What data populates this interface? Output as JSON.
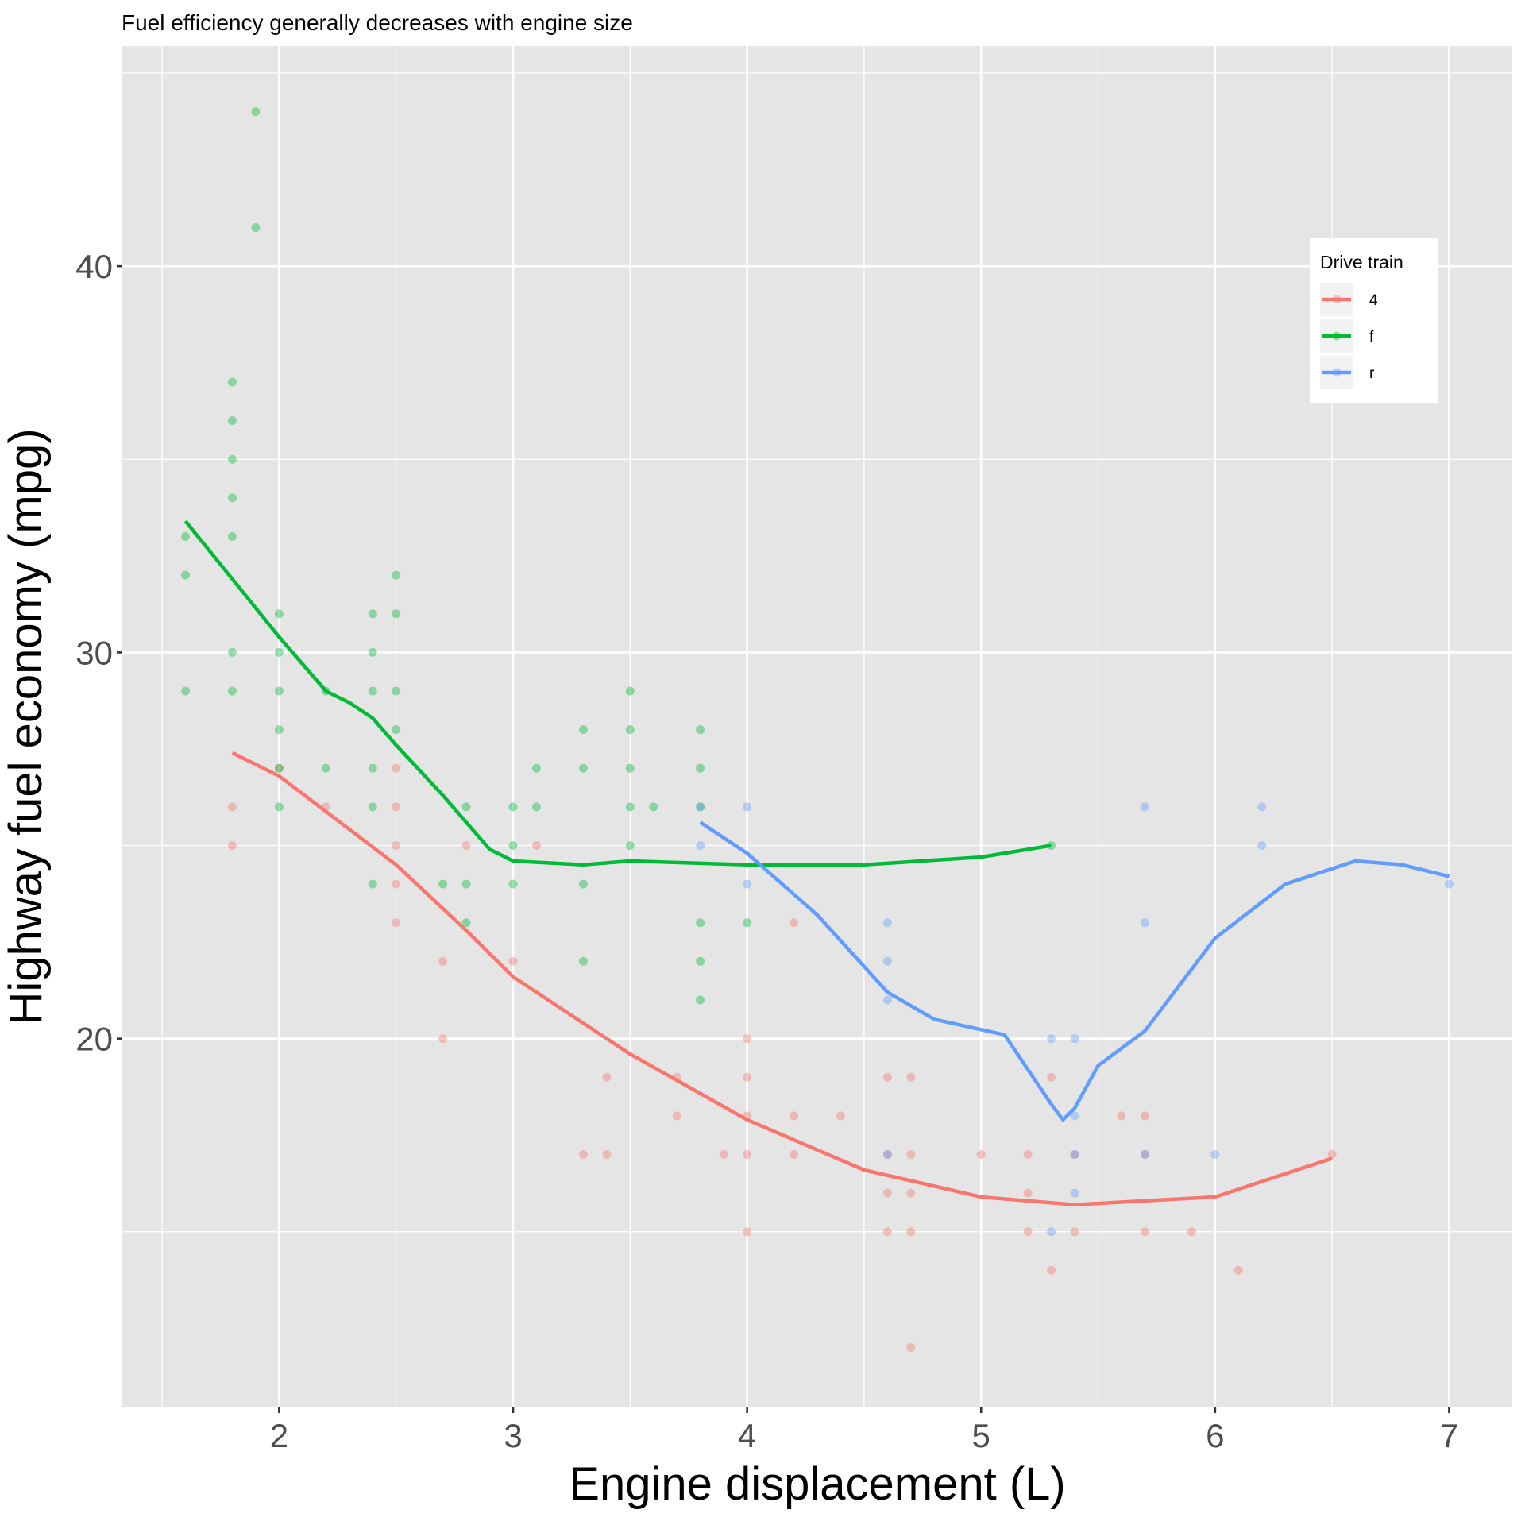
{
  "chart_data": {
    "type": "scatter",
    "title": "Fuel efficiency generally decreases with engine size",
    "x_label": "Engine displacement (L)",
    "y_label": "Highway fuel economy (mpg)",
    "xlim": [
      1.33,
      7.27
    ],
    "ylim": [
      10.45,
      45.7
    ],
    "xticks": [
      2,
      3,
      4,
      5,
      6,
      7
    ],
    "yticks": [
      20,
      30,
      40
    ],
    "x_minor_ticks": [
      1.5,
      2.5,
      3.5,
      4.5,
      5.5,
      6.5
    ],
    "y_minor_ticks": [
      15,
      25,
      35,
      45
    ],
    "grid": true,
    "legend": {
      "title": "Drive train",
      "position": "right"
    },
    "series": [
      {
        "name": "4",
        "color": "#F8766D",
        "x": [
          1.8,
          1.8,
          2.0,
          2.2,
          2.5,
          2.5,
          2.5,
          2.5,
          2.5,
          2.7,
          2.7,
          2.8,
          3.0,
          3.1,
          3.3,
          3.4,
          3.4,
          3.7,
          3.7,
          3.9,
          4.0,
          4.0,
          4.0,
          4.0,
          4.0,
          4.2,
          4.2,
          4.2,
          4.4,
          4.6,
          4.6,
          4.6,
          4.6,
          4.7,
          4.7,
          4.7,
          4.7,
          4.7,
          5.0,
          5.2,
          5.2,
          5.2,
          5.3,
          5.3,
          5.4,
          5.4,
          5.6,
          5.7,
          5.7,
          5.7,
          5.9,
          6.1,
          6.5
        ],
        "values": [
          26,
          25,
          27,
          26,
          27,
          26,
          25,
          24,
          23,
          22,
          20,
          25,
          22,
          25,
          17,
          19,
          17,
          19,
          18,
          17,
          20,
          19,
          18,
          17,
          15,
          23,
          18,
          17,
          18,
          19,
          17,
          16,
          15,
          19,
          17,
          16,
          15,
          12,
          17,
          17,
          16,
          15,
          19,
          14,
          17,
          15,
          18,
          18,
          17,
          15,
          15,
          14,
          17
        ],
        "trend": {
          "x": [
            1.8,
            2.0,
            2.5,
            2.8,
            3.0,
            3.5,
            4.0,
            4.5,
            5.0,
            5.4,
            6.0,
            6.5
          ],
          "values": [
            27.4,
            26.8,
            24.5,
            22.8,
            21.6,
            19.6,
            17.9,
            16.6,
            15.9,
            15.7,
            15.9,
            16.9
          ]
        }
      },
      {
        "name": "f",
        "color": "#00BA38",
        "x": [
          1.6,
          1.6,
          1.6,
          1.8,
          1.8,
          1.8,
          1.8,
          1.8,
          1.8,
          1.8,
          1.9,
          1.9,
          2.0,
          2.0,
          2.0,
          2.0,
          2.0,
          2.0,
          2.2,
          2.2,
          2.4,
          2.4,
          2.4,
          2.4,
          2.4,
          2.4,
          2.5,
          2.5,
          2.5,
          2.5,
          2.7,
          2.8,
          2.8,
          2.8,
          3.0,
          3.0,
          3.0,
          3.1,
          3.1,
          3.3,
          3.3,
          3.3,
          3.3,
          3.5,
          3.5,
          3.5,
          3.5,
          3.5,
          3.6,
          3.8,
          3.8,
          3.8,
          3.8,
          3.8,
          3.8,
          4.0,
          5.3
        ],
        "values": [
          33,
          32,
          29,
          37,
          36,
          35,
          34,
          33,
          30,
          29,
          44,
          41,
          31,
          30,
          29,
          28,
          27,
          26,
          29,
          27,
          31,
          30,
          29,
          27,
          26,
          24,
          32,
          31,
          29,
          28,
          24,
          26,
          24,
          23,
          26,
          25,
          24,
          27,
          26,
          28,
          27,
          24,
          22,
          29,
          28,
          27,
          26,
          25,
          26,
          28,
          27,
          26,
          23,
          22,
          21,
          23,
          25
        ],
        "trend": {
          "x": [
            1.6,
            1.8,
            2.0,
            2.2,
            2.3,
            2.4,
            2.5,
            2.7,
            2.8,
            2.9,
            3.0,
            3.3,
            3.5,
            4.0,
            4.5,
            5.0,
            5.3
          ],
          "values": [
            33.4,
            31.9,
            30.4,
            29.0,
            28.7,
            28.3,
            27.6,
            26.3,
            25.6,
            24.9,
            24.6,
            24.5,
            24.6,
            24.5,
            24.5,
            24.7,
            25.0
          ]
        }
      },
      {
        "name": "r",
        "color": "#619CFF",
        "x": [
          3.8,
          3.8,
          4.0,
          4.0,
          4.6,
          4.6,
          4.6,
          4.6,
          5.3,
          5.3,
          5.4,
          5.4,
          5.4,
          5.4,
          5.7,
          5.7,
          5.7,
          6.0,
          6.2,
          6.2,
          7.0
        ],
        "values": [
          26,
          25,
          26,
          24,
          23,
          22,
          21,
          17,
          20,
          15,
          20,
          18,
          17,
          16,
          26,
          23,
          17,
          17,
          26,
          25,
          24
        ],
        "trend": {
          "x": [
            3.8,
            4.0,
            4.3,
            4.6,
            4.8,
            5.1,
            5.3,
            5.35,
            5.4,
            5.5,
            5.7,
            6.0,
            6.3,
            6.6,
            6.8,
            7.0
          ],
          "values": [
            25.6,
            24.8,
            23.2,
            21.2,
            20.5,
            20.1,
            18.3,
            17.9,
            18.2,
            19.3,
            20.2,
            22.6,
            24.0,
            24.6,
            24.5,
            24.2
          ]
        }
      }
    ]
  }
}
